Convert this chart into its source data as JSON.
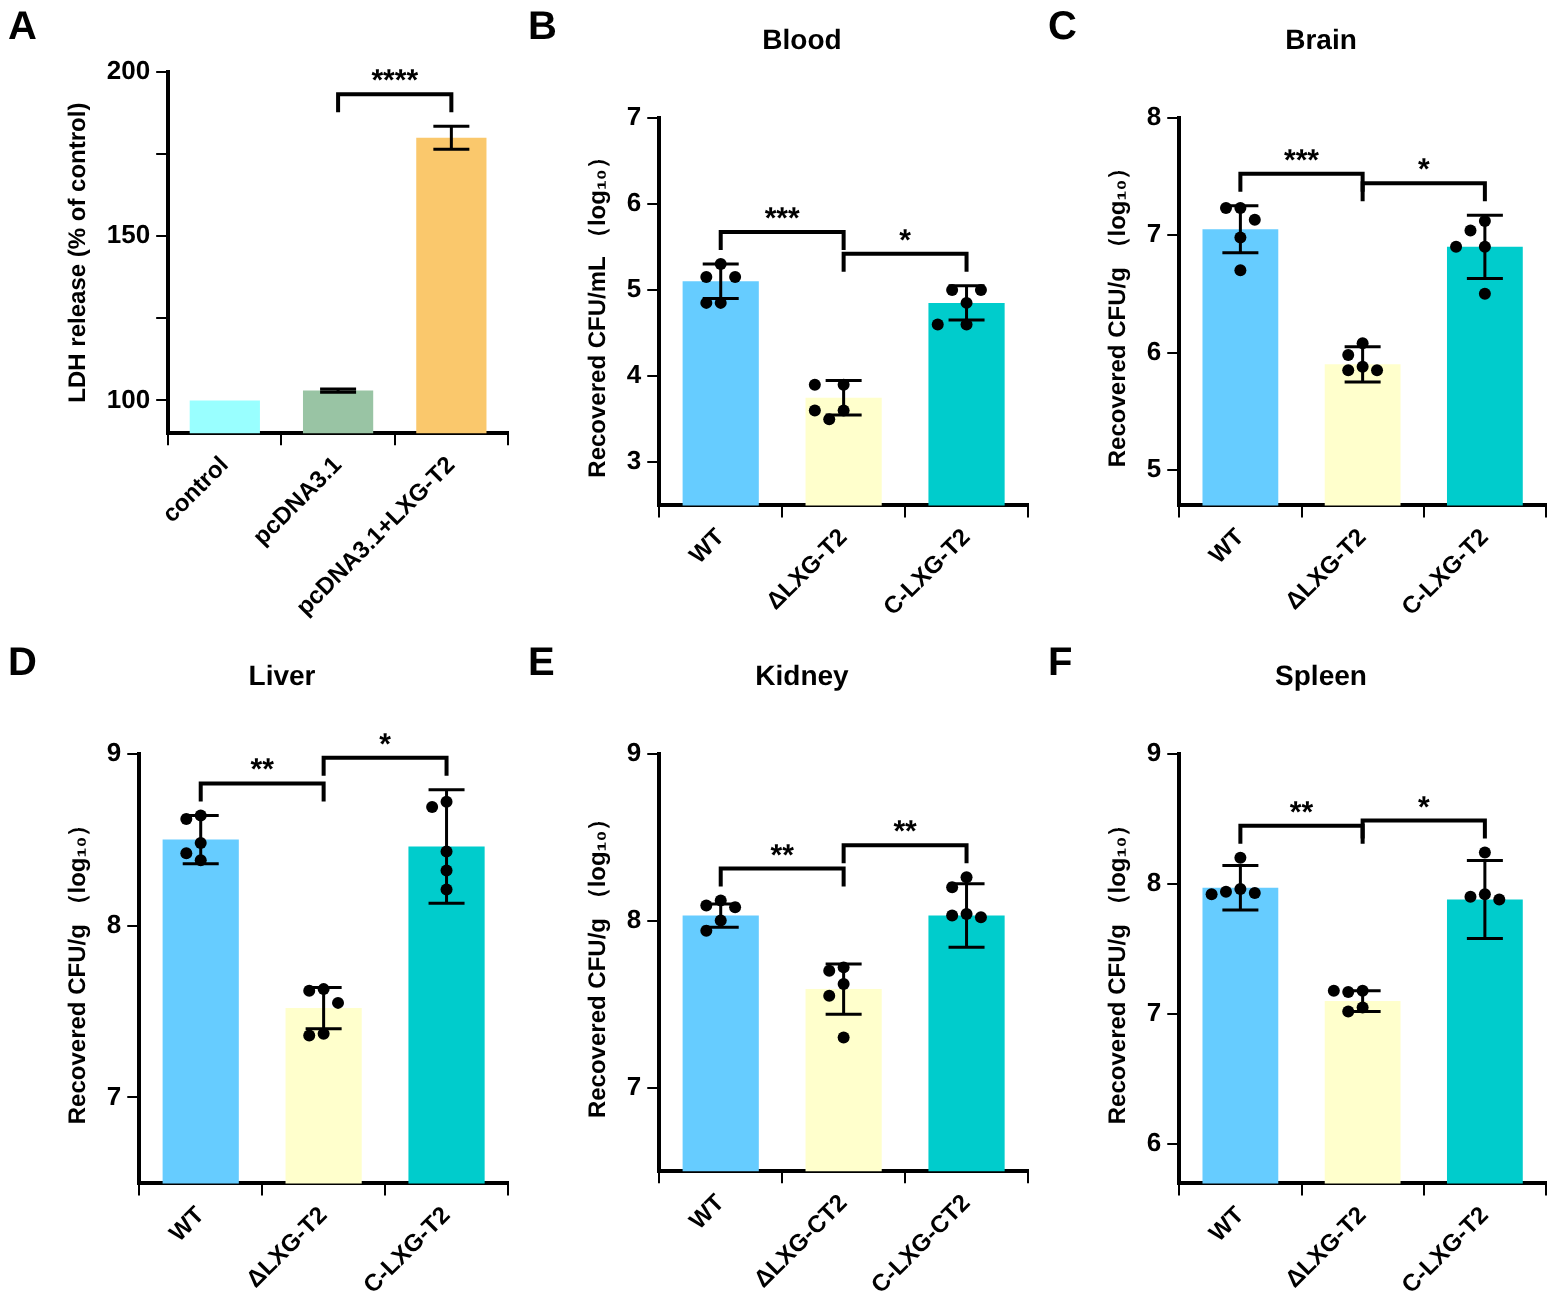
{
  "chart_data": [
    {
      "type": "bar",
      "ylabel": "LDH release (% of control)",
      "annotations": [
        "A",
        "****"
      ],
      "categories": [
        "control",
        "pcDNA3.1",
        "pcDNA3.1+LXG-T2"
      ],
      "series": [
        {
          "type": "bar",
          "values": [
            100,
            103,
            180
          ],
          "colors": [
            "#99ffff",
            "#99c4a4",
            "#fac86c"
          ],
          "errors": [
            null,
            0.5,
            3.5
          ]
        }
      ],
      "ylim": [
        90,
        200
      ],
      "yticks": [
        100,
        {
          "value": 125,
          "label": null
        },
        150,
        {
          "value": 175,
          "label": null
        },
        200
      ]
    },
    {
      "type": "bar",
      "title": "Blood",
      "ylabel": "Recovered CFU/mL （log₁₀）",
      "annotations": [
        "B",
        "***",
        "*"
      ],
      "categories": [
        "WT",
        "ΔLXG-T2",
        "C-LXG-T2"
      ],
      "series": [
        {
          "type": "bar",
          "values": [
            5.1,
            3.75,
            4.85
          ],
          "colors": [
            "#66ccff",
            "#ffffcc",
            "#00cccc"
          ],
          "errors": [
            0.2,
            0.2,
            0.2
          ]
        },
        {
          "type": "scatter",
          "color": "#000000",
          "x": [
            "WT",
            "WT",
            "WT",
            "WT",
            "WT",
            "ΔLXG-T2",
            "ΔLXG-T2",
            "ΔLXG-T2",
            "ΔLXG-T2",
            "ΔLXG-T2",
            "C-LXG-T2",
            "C-LXG-T2",
            "C-LXG-T2",
            "C-LXG-T2",
            "C-LXG-T2"
          ],
          "values": [
            5.3,
            5.15,
            5.15,
            4.85,
            4.85,
            3.9,
            3.9,
            3.6,
            3.6,
            3.5,
            4.85,
            5.0,
            5.0,
            4.6,
            4.6
          ]
        }
      ],
      "ylim": [
        2.5,
        7
      ],
      "yticks": [
        3,
        4,
        5,
        6,
        7
      ],
      "marker": "circle"
    },
    {
      "type": "bar",
      "title": "Brain",
      "ylabel": "Recovered CFU/g （log₁₀）",
      "annotations": [
        "C",
        "***",
        "*"
      ],
      "categories": [
        "WT",
        "ΔLXG-T2",
        "C-LXG-T2"
      ],
      "series": [
        {
          "type": "bar",
          "values": [
            7.05,
            5.9,
            6.9
          ],
          "colors": [
            "#66ccff",
            "#ffffcc",
            "#00cccc"
          ],
          "errors": [
            0.2,
            0.15,
            0.27
          ]
        },
        {
          "type": "scatter",
          "color": "#000000",
          "x": [
            "WT",
            "WT",
            "WT",
            "WT",
            "WT",
            "ΔLXG-T2",
            "ΔLXG-T2",
            "ΔLXG-T2",
            "ΔLXG-T2",
            "ΔLXG-T2",
            "C-LXG-T2",
            "C-LXG-T2",
            "C-LXG-T2",
            "C-LXG-T2",
            "C-LXG-T2"
          ],
          "values": [
            7.23,
            7.23,
            7.13,
            6.98,
            6.7,
            6.08,
            5.98,
            5.88,
            5.85,
            5.85,
            7.12,
            7.04,
            6.9,
            6.9,
            6.5
          ]
        }
      ],
      "ylim": [
        4.7,
        8
      ],
      "yticks": [
        5,
        6,
        7,
        8
      ],
      "marker": "circle"
    },
    {
      "type": "bar",
      "title": "Liver",
      "ylabel": "Recovered CFU/g （log₁₀）",
      "annotations": [
        "D",
        "**",
        "*"
      ],
      "categories": [
        "WT",
        "ΔLXG-T2",
        "C-LXG-T2"
      ],
      "series": [
        {
          "type": "bar",
          "values": [
            8.5,
            7.52,
            8.46
          ],
          "colors": [
            "#66ccff",
            "#ffffcc",
            "#00cccc"
          ],
          "errors": [
            0.14,
            0.12,
            0.33
          ]
        },
        {
          "type": "scatter",
          "color": "#000000",
          "x": [
            "WT",
            "WT",
            "WT",
            "WT",
            "WT",
            "ΔLXG-T2",
            "ΔLXG-T2",
            "ΔLXG-T2",
            "ΔLXG-T2",
            "ΔLXG-T2",
            "C-LXG-T2",
            "C-LXG-T2",
            "C-LXG-T2",
            "C-LXG-T2",
            "C-LXG-T2"
          ],
          "values": [
            8.64,
            8.62,
            8.48,
            8.42,
            8.38,
            7.63,
            7.62,
            7.55,
            7.37,
            7.36,
            8.72,
            8.69,
            8.43,
            8.32,
            8.21
          ]
        }
      ],
      "ylim": [
        6.5,
        9
      ],
      "yticks": [
        7,
        8,
        9
      ],
      "marker": "circle"
    },
    {
      "type": "bar",
      "title": "Kidney",
      "ylabel": "Recovered CFU/g （log₁₀）",
      "annotations": [
        "E",
        "**",
        "**"
      ],
      "categories": [
        "WT",
        "ΔLXG-CT2",
        "C-LXG-CT2"
      ],
      "series": [
        {
          "type": "bar",
          "values": [
            8.03,
            7.59,
            8.03
          ],
          "colors": [
            "#66ccff",
            "#ffffcc",
            "#00cccc"
          ],
          "errors": [
            0.07,
            0.15,
            0.19
          ]
        },
        {
          "type": "scatter",
          "color": "#000000",
          "x": [
            "WT",
            "WT",
            "WT",
            "WT",
            "WT",
            "ΔLXG-CT2",
            "ΔLXG-CT2",
            "ΔLXG-CT2",
            "ΔLXG-CT2",
            "ΔLXG-CT2",
            "C-LXG-CT2",
            "C-LXG-CT2",
            "C-LXG-CT2",
            "C-LXG-CT2",
            "C-LXG-CT2"
          ],
          "values": [
            8.12,
            8.09,
            8.08,
            8.0,
            7.94,
            7.72,
            7.7,
            7.62,
            7.55,
            7.3,
            8.26,
            8.2,
            8.04,
            8.03,
            8.02
          ]
        }
      ],
      "ylim": [
        6.5,
        9
      ],
      "yticks": [
        7,
        8,
        9
      ],
      "marker": "circle"
    },
    {
      "type": "bar",
      "title": "Spleen",
      "ylabel": "Recovered CFU/g （log₁₀）",
      "annotations": [
        "F",
        "**",
        "*"
      ],
      "categories": [
        "WT",
        "ΔLXG-T2",
        "C-LXG-T2"
      ],
      "series": [
        {
          "type": "bar",
          "values": [
            7.97,
            7.1,
            7.88
          ],
          "colors": [
            "#66ccff",
            "#ffffcc",
            "#00cccc"
          ],
          "errors": [
            0.17,
            0.08,
            0.3
          ]
        },
        {
          "type": "scatter",
          "color": "#000000",
          "x": [
            "WT",
            "WT",
            "WT",
            "WT",
            "WT",
            "ΔLXG-T2",
            "ΔLXG-T2",
            "ΔLXG-T2",
            "ΔLXG-T2",
            "ΔLXG-T2",
            "C-LXG-T2",
            "C-LXG-T2",
            "C-LXG-T2",
            "C-LXG-T2"
          ],
          "values": [
            8.2,
            7.96,
            7.94,
            7.93,
            7.92,
            7.18,
            7.18,
            7.17,
            7.05,
            7.02,
            8.24,
            7.92,
            7.9,
            7.88
          ]
        }
      ],
      "ylim": [
        5.7,
        9
      ],
      "yticks": [
        6,
        7,
        8,
        9
      ],
      "marker": "circle"
    }
  ]
}
